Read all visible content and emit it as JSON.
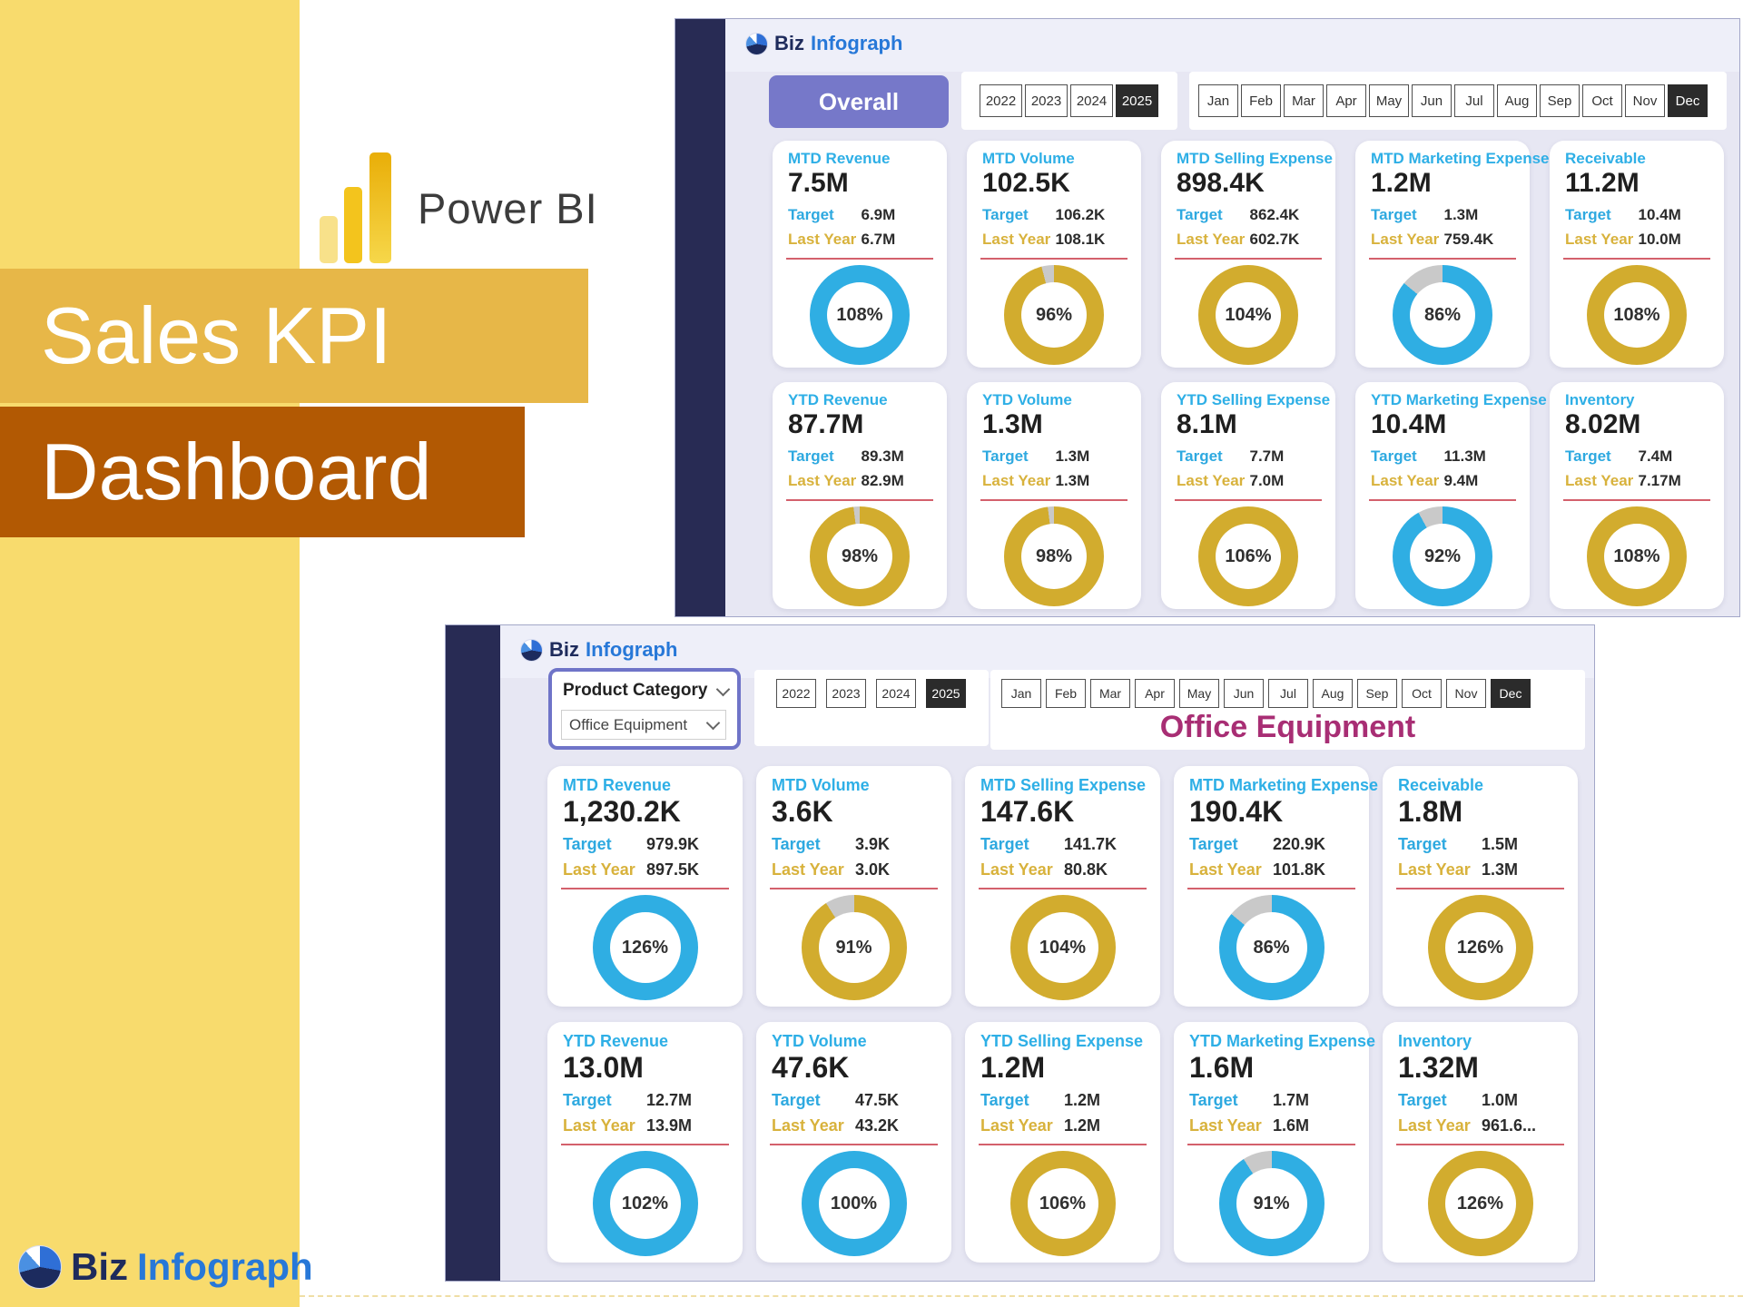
{
  "brand": {
    "power_bi": "Power BI",
    "title_line1": "Sales KPI",
    "title_line2": "Dashboard",
    "logo_biz": "Biz",
    "logo_infograph": "Infograph"
  },
  "labels": {
    "target": "Target",
    "last_year": "Last Year"
  },
  "filters": {
    "years": [
      "2022",
      "2023",
      "2024",
      "2025"
    ],
    "months": [
      "Jan",
      "Feb",
      "Mar",
      "Apr",
      "May",
      "Jun",
      "Jul",
      "Aug",
      "Sep",
      "Oct",
      "Nov",
      "Dec"
    ]
  },
  "colors": {
    "blue": "#2FAEE3",
    "gold": "#D2AC2E",
    "gray": "#C9C9C9"
  },
  "top_dashboard": {
    "logo_biz": "Biz",
    "logo_infograph": "Infograph",
    "scope_button": "Overall",
    "selected_year": "2025",
    "selected_month": "Dec",
    "cards_row1": [
      {
        "title": "MTD Revenue",
        "value": "7.5M",
        "target": "6.9M",
        "last_year": "6.7M",
        "pct": "108%",
        "percent": 108,
        "color": "blue"
      },
      {
        "title": "MTD Volume",
        "value": "102.5K",
        "target": "106.2K",
        "last_year": "108.1K",
        "pct": "96%",
        "percent": 96,
        "color": "gold"
      },
      {
        "title": "MTD Selling Expense",
        "value": "898.4K",
        "target": "862.4K",
        "last_year": "602.7K",
        "pct": "104%",
        "percent": 104,
        "color": "gold"
      },
      {
        "title": "MTD Marketing Expense",
        "value": "1.2M",
        "target": "1.3M",
        "last_year": "759.4K",
        "pct": "86%",
        "percent": 86,
        "color": "blue"
      },
      {
        "title": "Receivable",
        "value": "11.2M",
        "target": "10.4M",
        "last_year": "10.0M",
        "pct": "108%",
        "percent": 108,
        "color": "gold"
      }
    ],
    "cards_row2": [
      {
        "title": "YTD Revenue",
        "value": "87.7M",
        "target": "89.3M",
        "last_year": "82.9M",
        "pct": "98%",
        "percent": 98,
        "color": "gold"
      },
      {
        "title": "YTD Volume",
        "value": "1.3M",
        "target": "1.3M",
        "last_year": "1.3M",
        "pct": "98%",
        "percent": 98,
        "color": "gold"
      },
      {
        "title": "YTD Selling Expense",
        "value": "8.1M",
        "target": "7.7M",
        "last_year": "7.0M",
        "pct": "106%",
        "percent": 106,
        "color": "gold"
      },
      {
        "title": "YTD Marketing Expense",
        "value": "10.4M",
        "target": "11.3M",
        "last_year": "9.4M",
        "pct": "92%",
        "percent": 92,
        "color": "blue"
      },
      {
        "title": "Inventory",
        "value": "8.02M",
        "target": "7.4M",
        "last_year": "7.17M",
        "pct": "108%",
        "percent": 108,
        "color": "gold"
      }
    ]
  },
  "bottom_dashboard": {
    "logo_biz": "Biz",
    "logo_infograph": "Infograph",
    "category_label": "Product Category",
    "category_value": "Office Equipment",
    "page_title": "Office Equipment",
    "selected_year": "2025",
    "selected_month": "Dec",
    "cards_row1": [
      {
        "title": "MTD Revenue",
        "value": "1,230.2K",
        "target": "979.9K",
        "last_year": "897.5K",
        "pct": "126%",
        "percent": 126,
        "color": "blue"
      },
      {
        "title": "MTD Volume",
        "value": "3.6K",
        "target": "3.9K",
        "last_year": "3.0K",
        "pct": "91%",
        "percent": 91,
        "color": "gold"
      },
      {
        "title": "MTD Selling Expense",
        "value": "147.6K",
        "target": "141.7K",
        "last_year": "80.8K",
        "pct": "104%",
        "percent": 104,
        "color": "gold"
      },
      {
        "title": "MTD Marketing Expense",
        "value": "190.4K",
        "target": "220.9K",
        "last_year": "101.8K",
        "pct": "86%",
        "percent": 86,
        "color": "blue"
      },
      {
        "title": "Receivable",
        "value": "1.8M",
        "target": "1.5M",
        "last_year": "1.3M",
        "pct": "126%",
        "percent": 126,
        "color": "gold"
      }
    ],
    "cards_row2": [
      {
        "title": "YTD Revenue",
        "value": "13.0M",
        "target": "12.7M",
        "last_year": "13.9M",
        "pct": "102%",
        "percent": 102,
        "color": "blue"
      },
      {
        "title": "YTD Volume",
        "value": "47.6K",
        "target": "47.5K",
        "last_year": "43.2K",
        "pct": "100%",
        "percent": 100,
        "color": "blue"
      },
      {
        "title": "YTD Selling Expense",
        "value": "1.2M",
        "target": "1.2M",
        "last_year": "1.2M",
        "pct": "106%",
        "percent": 106,
        "color": "gold"
      },
      {
        "title": "YTD Marketing Expense",
        "value": "1.6M",
        "target": "1.7M",
        "last_year": "1.6M",
        "pct": "91%",
        "percent": 91,
        "color": "blue"
      },
      {
        "title": "Inventory",
        "value": "1.32M",
        "target": "1.0M",
        "last_year": "961.6...",
        "pct": "126%",
        "percent": 126,
        "color": "gold"
      }
    ]
  }
}
